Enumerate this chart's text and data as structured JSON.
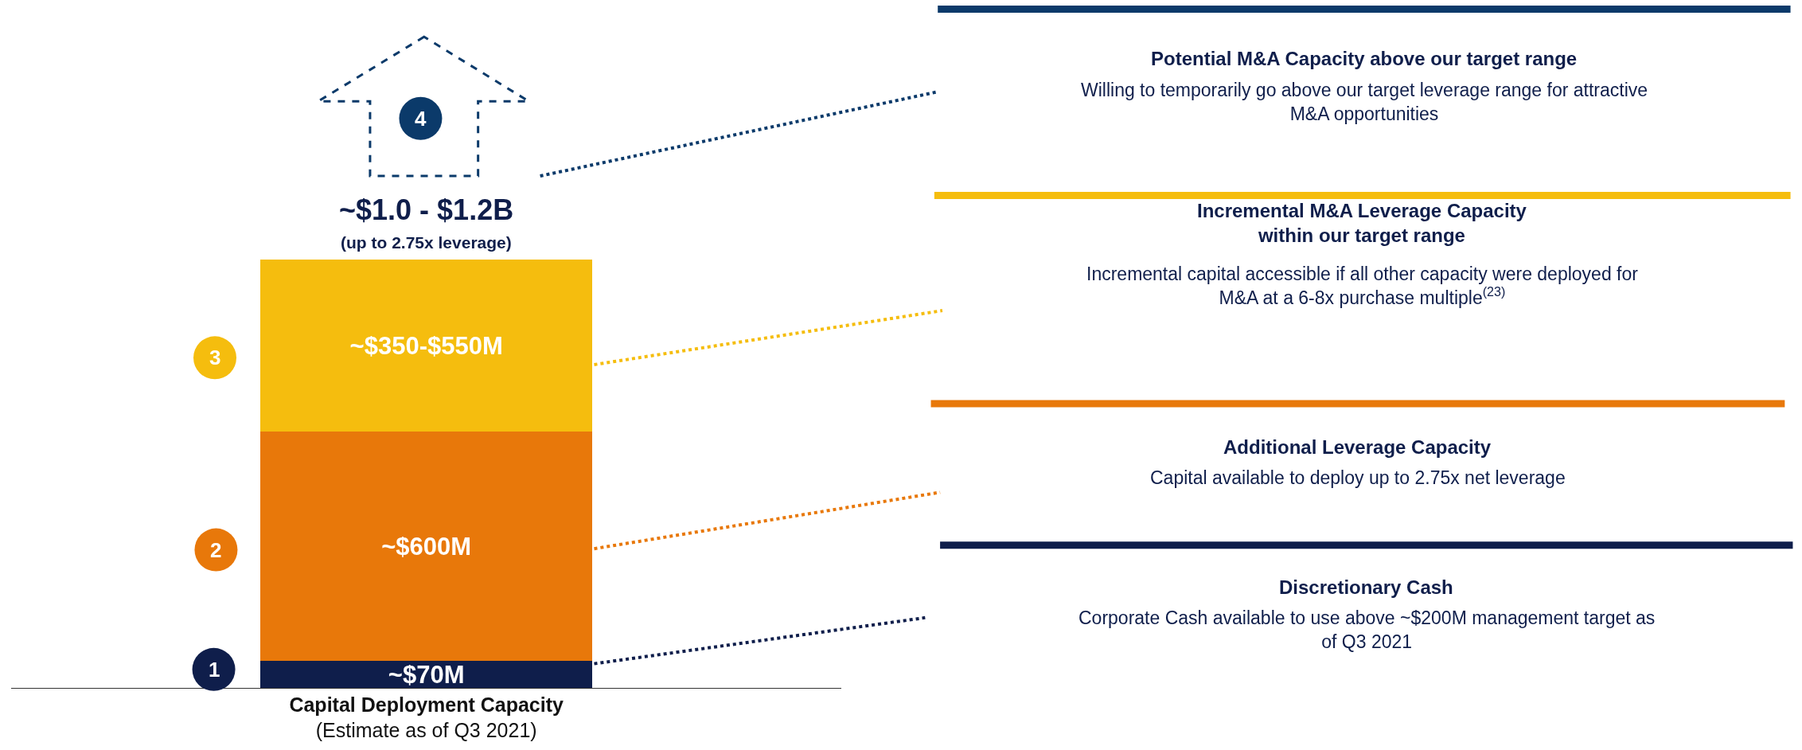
{
  "chart_data": {
    "type": "bar",
    "stacked": true,
    "categories": [
      null
    ],
    "xlabel": "Capital Deployment Capacity\n(Estimate as of Q3 2021)",
    "tick_labels": false,
    "ylim": [
      0,
      1800
    ],
    "series": [
      {
        "color": "#0f1e4b",
        "values": [
          70
        ],
        "value_labels": [
          "~$70M"
        ]
      },
      {
        "color": "#e8780a",
        "values": [
          600
        ],
        "value_labels": [
          "~$600M"
        ]
      },
      {
        "color": "#f5bd0e",
        "values": [
          450
        ],
        "value_labels": [
          "~$350-$550M"
        ]
      }
    ],
    "totals": [
      "~$1.0 - $1.2B"
    ],
    "annotations": [
      "(up to 2.75x leverage)",
      "1",
      "2",
      "3",
      "4",
      "Potential M&A Capacity above our target range",
      "Willing to temporarily go above our target leverage range for attractive\nM&A opportunities",
      "Incremental M&A Leverage Capacity\nwithin our target range",
      "Incremental capital accessible if all other capacity were deployed for\nM&A at a 6-8x purchase multiple$^{(23)}$",
      "Additional Leverage Capacity",
      "Capital available to deploy up to 2.75x net leverage",
      "Discretionary Cash",
      "Corporate Cash available to use above ~$200M management target as\nof Q3 2021"
    ]
  }
}
